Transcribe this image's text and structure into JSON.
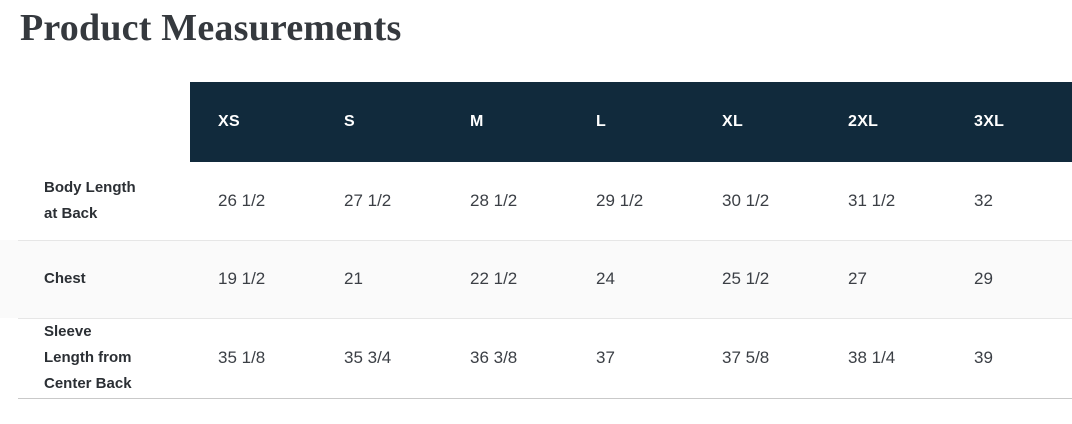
{
  "page": {
    "title": "Product Measurements"
  },
  "colors": {
    "header_bg": "#112a3c",
    "header_text": "#ffffff",
    "stripe_row_bg": "#fafafa",
    "divider": "#e6e6e6",
    "bottom_divider": "#c9c9c9",
    "title_text": "#35393e",
    "label_text": "#2b2f34",
    "value_text": "#3b3f45"
  },
  "table": {
    "size_headers": [
      "XS",
      "S",
      "M",
      "L",
      "XL",
      "2XL",
      "3XL"
    ],
    "rows": [
      {
        "label": "Body Length\nat Back",
        "values": [
          "26 1/2",
          "27 1/2",
          "28 1/2",
          "29 1/2",
          "30 1/2",
          "31 1/2",
          "32"
        ]
      },
      {
        "label": "Chest",
        "values": [
          "19 1/2",
          "21",
          "22 1/2",
          "24",
          "25 1/2",
          "27",
          "29"
        ]
      },
      {
        "label": "Sleeve\nLength from\nCenter Back",
        "values": [
          "35 1/8",
          "35 3/4",
          "36 3/8",
          "37",
          "37 5/8",
          "38 1/4",
          "39"
        ]
      }
    ]
  },
  "chart_data": {
    "type": "table",
    "title": "Product Measurements",
    "columns": [
      "",
      "XS",
      "S",
      "M",
      "L",
      "XL",
      "2XL",
      "3XL"
    ],
    "rows": [
      [
        "Body Length at Back",
        "26 1/2",
        "27 1/2",
        "28 1/2",
        "29 1/2",
        "30 1/2",
        "31 1/2",
        "32"
      ],
      [
        "Chest",
        "19 1/2",
        "21",
        "22 1/2",
        "24",
        "25 1/2",
        "27",
        "29"
      ],
      [
        "Sleeve Length from Center Back",
        "35 1/8",
        "35 3/4",
        "36 3/8",
        "37",
        "37 5/8",
        "38 1/4",
        "39"
      ]
    ],
    "layout_hints": {
      "header_fill": "#112a3c",
      "header_text_color": "#ffffff",
      "striped_row_index": 1,
      "units": "inches (implied)"
    }
  }
}
